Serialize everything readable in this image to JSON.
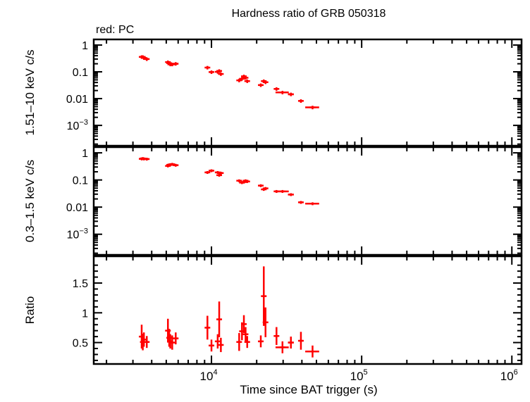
{
  "chart_data": {
    "type": "scatter",
    "title": "Hardness ratio of GRB 050318",
    "legend": "red: PC",
    "xlabel": "Time since BAT trigger (s)",
    "x_scale": "log",
    "xlim": [
      1645,
      1160000
    ],
    "x_ticks": [
      {
        "v": 10000,
        "base": "10",
        "exp": "4"
      },
      {
        "v": 100000,
        "base": "10",
        "exp": "5"
      },
      {
        "v": 1000000,
        "base": "10",
        "exp": "6"
      }
    ],
    "color": "#ff0000",
    "x": [
      3430,
      3490,
      3550,
      3710,
      5130,
      5230,
      5320,
      5480,
      5780,
      9400,
      10000,
      11000,
      11260,
      11550,
      15290,
      15960,
      16440,
      16870,
      17300,
      21300,
      22300,
      22900,
      27100,
      29700,
      33800,
      39400,
      47100
    ],
    "xerr": [
      60,
      60,
      60,
      100,
      80,
      80,
      80,
      100,
      200,
      200,
      250,
      150,
      150,
      200,
      200,
      200,
      200,
      200,
      300,
      300,
      250,
      300,
      600,
      3000,
      1500,
      800,
      5000
    ],
    "panels": [
      {
        "ylabel": "1.51–10 keV c/s",
        "y_scale": "log",
        "ylim": [
          0.000174,
          1.62
        ],
        "y_ticks": [
          {
            "v": 1,
            "label": "1"
          },
          {
            "v": 0.1,
            "label": "0.1"
          },
          {
            "v": 0.01,
            "label": "0.01"
          },
          {
            "v": 0.001,
            "label": "10",
            "exp": "−3"
          }
        ],
        "values": [
          0.36,
          0.36,
          0.33,
          0.3,
          0.23,
          0.21,
          0.19,
          0.19,
          0.2,
          0.144,
          0.098,
          0.1,
          0.108,
          0.083,
          0.048,
          0.055,
          0.068,
          0.06,
          0.045,
          0.032,
          0.045,
          0.041,
          0.023,
          0.017,
          0.0145,
          0.0082,
          0.0047
        ],
        "rel_err": 0.15
      },
      {
        "ylabel": "0.3–1.5 keV c/s",
        "y_scale": "log",
        "ylim": [
          0.000174,
          1.62
        ],
        "y_ticks": [
          {
            "v": 1,
            "label": "1"
          },
          {
            "v": 0.1,
            "label": "0.1"
          },
          {
            "v": 0.01,
            "label": "0.01"
          },
          {
            "v": 0.001,
            "label": "10",
            "exp": "−3"
          }
        ],
        "values": [
          0.6,
          0.62,
          0.6,
          0.59,
          0.33,
          0.36,
          0.37,
          0.38,
          0.35,
          0.19,
          0.22,
          0.19,
          0.15,
          0.18,
          0.094,
          0.08,
          0.084,
          0.094,
          0.088,
          0.062,
          0.045,
          0.049,
          0.038,
          0.038,
          0.029,
          0.015,
          0.0134
        ],
        "rel_err": 0.12
      },
      {
        "ylabel": "Ratio",
        "y_scale": "linear",
        "ylim": [
          0.14,
          1.95
        ],
        "y_ticks": [
          {
            "v": 0.5,
            "label": "0.5"
          },
          {
            "v": 1,
            "label": "1"
          },
          {
            "v": 1.5,
            "label": "1.5"
          }
        ],
        "values": [
          0.6,
          0.51,
          0.55,
          0.51,
          0.7,
          0.58,
          0.52,
          0.5,
          0.57,
          0.75,
          0.45,
          0.52,
          0.89,
          0.46,
          0.51,
          0.69,
          0.81,
          0.64,
          0.51,
          0.52,
          1.28,
          0.84,
          0.61,
          0.42,
          0.5,
          0.53,
          0.35
        ],
        "yerr": [
          0.2,
          0.14,
          0.12,
          0.1,
          0.2,
          0.15,
          0.12,
          0.12,
          0.1,
          0.2,
          0.1,
          0.12,
          0.3,
          0.12,
          0.15,
          0.15,
          0.15,
          0.12,
          0.1,
          0.1,
          0.5,
          0.25,
          0.15,
          0.1,
          0.1,
          0.15,
          0.1
        ]
      }
    ]
  }
}
